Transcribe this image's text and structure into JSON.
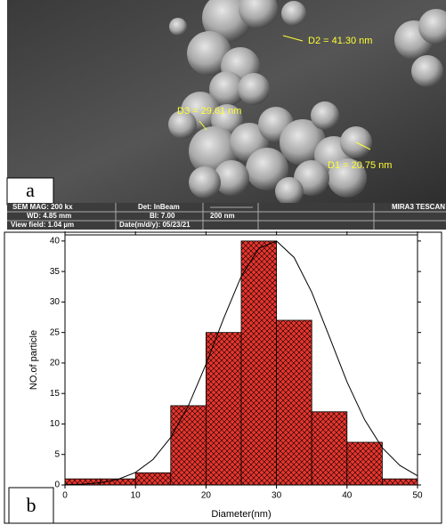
{
  "sem_image": {
    "label": "a",
    "measurements": [
      "D2 = 41.30 nm",
      "D3 = 29.61 nm",
      "D1 = 20.75 nm"
    ],
    "info": [
      "SEM MAG: 200 kx",
      "Det: InBeam",
      "MIRA3 TESCAN",
      "WD: 4.85 mm",
      "BI: 7.00",
      "200 nm",
      "View field: 1.04 µm",
      "Date(m/d/y): 05/23/21"
    ]
  },
  "chart_data": {
    "type": "histogram",
    "label": "b",
    "xlabel": "Diameter(nm)",
    "ylabel": "NO.of particle",
    "bins": [
      0,
      5,
      10,
      15,
      20,
      25,
      30,
      35,
      40,
      45,
      50
    ],
    "values": [
      1,
      1,
      2,
      13,
      25,
      40,
      27,
      12,
      7,
      1
    ],
    "color": "#e8352d",
    "fit": {
      "x": [
        0,
        2.5,
        5,
        7.5,
        10,
        12.5,
        15,
        17.5,
        20,
        22.5,
        25,
        27.5,
        30,
        32.5,
        35,
        37.5,
        40,
        42.5,
        45,
        47.5,
        50
      ],
      "values": [
        0.04,
        0.13,
        0.37,
        0.91,
        2.05,
        4.2,
        7.8,
        13.0,
        19.8,
        27.3,
        34.2,
        38.8,
        40,
        37.3,
        31.6,
        24.3,
        16.9,
        10.7,
        6.1,
        3.2,
        1.5
      ],
      "color": "#000000"
    },
    "xlim": [
      0,
      50
    ],
    "ylim": [
      0,
      41
    ],
    "xticks": [
      0,
      10,
      20,
      30,
      40,
      50
    ],
    "yticks": [
      0,
      5,
      10,
      15,
      20,
      25,
      30,
      35,
      40
    ]
  }
}
